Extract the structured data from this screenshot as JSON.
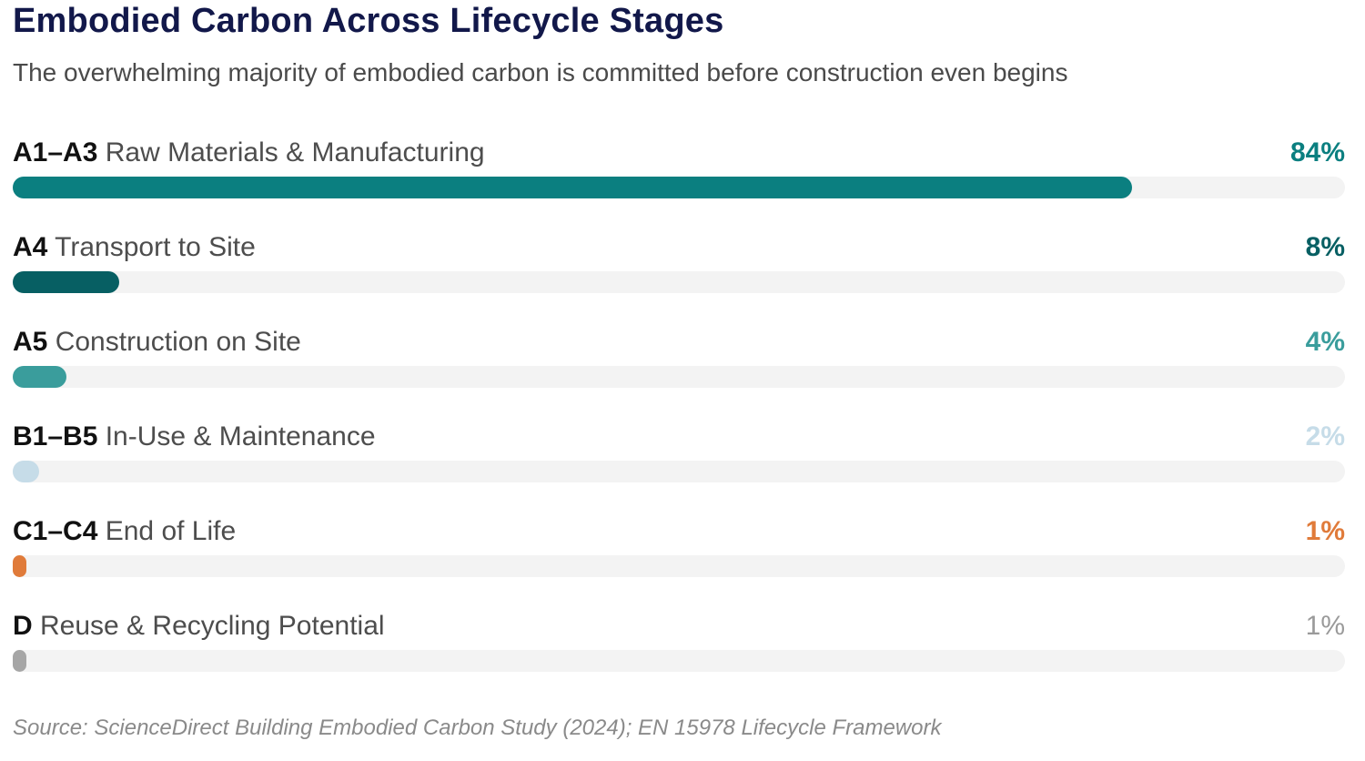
{
  "header": {
    "title": "Embodied Carbon Across Lifecycle Stages",
    "subtitle": "The overwhelming majority of embodied carbon is committed before construction even begins"
  },
  "footer": {
    "source": "Source: ScienceDirect Building Embodied Carbon Study (2024); EN 15978 Lifecycle Framework"
  },
  "chart_data": {
    "type": "bar",
    "orientation": "horizontal",
    "title": "Embodied Carbon Across Lifecycle Stages",
    "subtitle": "The overwhelming majority of embodied carbon is committed before construction even begins",
    "xlim": [
      0,
      100
    ],
    "unit": "%",
    "grid": false,
    "categories": [
      {
        "code": "A1–A3",
        "name": "Raw Materials & Manufacturing",
        "value": 84,
        "label": "84%",
        "color": "#0b7f80",
        "label_color": "#0b7f80"
      },
      {
        "code": "A4",
        "name": "Transport to Site",
        "value": 8,
        "label": "8%",
        "color": "#075f63",
        "label_color": "#075f63"
      },
      {
        "code": "A5",
        "name": "Construction on Site",
        "value": 4,
        "label": "4%",
        "color": "#3a9d9c",
        "label_color": "#3a9d9c"
      },
      {
        "code": "B1–B5",
        "name": "In-Use & Maintenance",
        "value": 2,
        "label": "2%",
        "color": "#c6dce8",
        "label_color": "#c6dce8"
      },
      {
        "code": "C1–C4",
        "name": "End of Life",
        "value": 1,
        "label": "1%",
        "color": "#e07b3a",
        "label_color": "#e07b3a"
      },
      {
        "code": "D",
        "name": "Reuse & Recycling Potential",
        "value": 1,
        "label": "1%",
        "color": "#a6a6a6",
        "label_color": "#9a9a9a"
      }
    ]
  }
}
